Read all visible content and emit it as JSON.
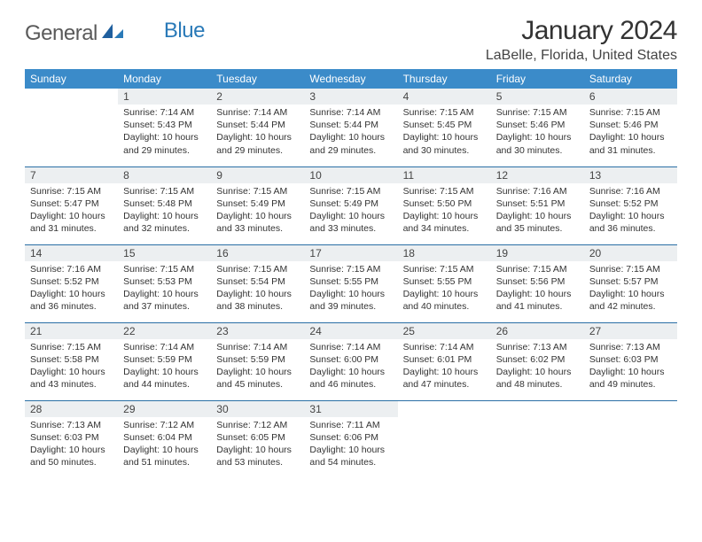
{
  "brand": {
    "part1": "General",
    "part2": "Blue"
  },
  "title": "January 2024",
  "location": "LaBelle, Florida, United States",
  "colors": {
    "header_bg": "#3b8bc9",
    "row_divider": "#2a6fa5",
    "daynum_bg": "#eceff1",
    "brand_gray": "#5a5a5a",
    "brand_blue": "#2a7ab8"
  },
  "weekdays": [
    "Sunday",
    "Monday",
    "Tuesday",
    "Wednesday",
    "Thursday",
    "Friday",
    "Saturday"
  ],
  "weeks": [
    [
      null,
      {
        "n": "1",
        "sr": "7:14 AM",
        "ss": "5:43 PM",
        "dl": "10 hours and 29 minutes."
      },
      {
        "n": "2",
        "sr": "7:14 AM",
        "ss": "5:44 PM",
        "dl": "10 hours and 29 minutes."
      },
      {
        "n": "3",
        "sr": "7:14 AM",
        "ss": "5:44 PM",
        "dl": "10 hours and 29 minutes."
      },
      {
        "n": "4",
        "sr": "7:15 AM",
        "ss": "5:45 PM",
        "dl": "10 hours and 30 minutes."
      },
      {
        "n": "5",
        "sr": "7:15 AM",
        "ss": "5:46 PM",
        "dl": "10 hours and 30 minutes."
      },
      {
        "n": "6",
        "sr": "7:15 AM",
        "ss": "5:46 PM",
        "dl": "10 hours and 31 minutes."
      }
    ],
    [
      {
        "n": "7",
        "sr": "7:15 AM",
        "ss": "5:47 PM",
        "dl": "10 hours and 31 minutes."
      },
      {
        "n": "8",
        "sr": "7:15 AM",
        "ss": "5:48 PM",
        "dl": "10 hours and 32 minutes."
      },
      {
        "n": "9",
        "sr": "7:15 AM",
        "ss": "5:49 PM",
        "dl": "10 hours and 33 minutes."
      },
      {
        "n": "10",
        "sr": "7:15 AM",
        "ss": "5:49 PM",
        "dl": "10 hours and 33 minutes."
      },
      {
        "n": "11",
        "sr": "7:15 AM",
        "ss": "5:50 PM",
        "dl": "10 hours and 34 minutes."
      },
      {
        "n": "12",
        "sr": "7:16 AM",
        "ss": "5:51 PM",
        "dl": "10 hours and 35 minutes."
      },
      {
        "n": "13",
        "sr": "7:16 AM",
        "ss": "5:52 PM",
        "dl": "10 hours and 36 minutes."
      }
    ],
    [
      {
        "n": "14",
        "sr": "7:16 AM",
        "ss": "5:52 PM",
        "dl": "10 hours and 36 minutes."
      },
      {
        "n": "15",
        "sr": "7:15 AM",
        "ss": "5:53 PM",
        "dl": "10 hours and 37 minutes."
      },
      {
        "n": "16",
        "sr": "7:15 AM",
        "ss": "5:54 PM",
        "dl": "10 hours and 38 minutes."
      },
      {
        "n": "17",
        "sr": "7:15 AM",
        "ss": "5:55 PM",
        "dl": "10 hours and 39 minutes."
      },
      {
        "n": "18",
        "sr": "7:15 AM",
        "ss": "5:55 PM",
        "dl": "10 hours and 40 minutes."
      },
      {
        "n": "19",
        "sr": "7:15 AM",
        "ss": "5:56 PM",
        "dl": "10 hours and 41 minutes."
      },
      {
        "n": "20",
        "sr": "7:15 AM",
        "ss": "5:57 PM",
        "dl": "10 hours and 42 minutes."
      }
    ],
    [
      {
        "n": "21",
        "sr": "7:15 AM",
        "ss": "5:58 PM",
        "dl": "10 hours and 43 minutes."
      },
      {
        "n": "22",
        "sr": "7:14 AM",
        "ss": "5:59 PM",
        "dl": "10 hours and 44 minutes."
      },
      {
        "n": "23",
        "sr": "7:14 AM",
        "ss": "5:59 PM",
        "dl": "10 hours and 45 minutes."
      },
      {
        "n": "24",
        "sr": "7:14 AM",
        "ss": "6:00 PM",
        "dl": "10 hours and 46 minutes."
      },
      {
        "n": "25",
        "sr": "7:14 AM",
        "ss": "6:01 PM",
        "dl": "10 hours and 47 minutes."
      },
      {
        "n": "26",
        "sr": "7:13 AM",
        "ss": "6:02 PM",
        "dl": "10 hours and 48 minutes."
      },
      {
        "n": "27",
        "sr": "7:13 AM",
        "ss": "6:03 PM",
        "dl": "10 hours and 49 minutes."
      }
    ],
    [
      {
        "n": "28",
        "sr": "7:13 AM",
        "ss": "6:03 PM",
        "dl": "10 hours and 50 minutes."
      },
      {
        "n": "29",
        "sr": "7:12 AM",
        "ss": "6:04 PM",
        "dl": "10 hours and 51 minutes."
      },
      {
        "n": "30",
        "sr": "7:12 AM",
        "ss": "6:05 PM",
        "dl": "10 hours and 53 minutes."
      },
      {
        "n": "31",
        "sr": "7:11 AM",
        "ss": "6:06 PM",
        "dl": "10 hours and 54 minutes."
      },
      null,
      null,
      null
    ]
  ],
  "labels": {
    "sunrise": "Sunrise:",
    "sunset": "Sunset:",
    "daylight": "Daylight:"
  }
}
